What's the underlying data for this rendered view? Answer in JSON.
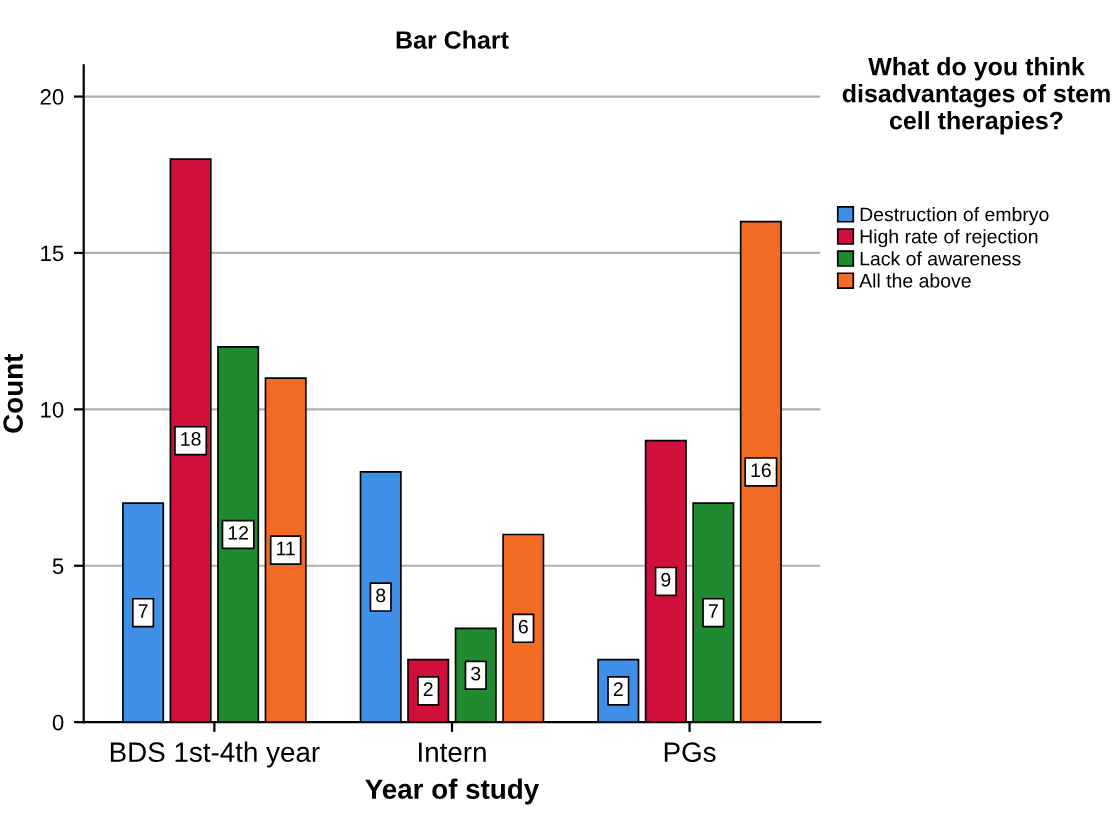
{
  "chart_data": {
    "type": "bar",
    "title": "Bar Chart",
    "xlabel": "Year of study",
    "ylabel": "Count",
    "legend_title": "What do you think disadvantages of stem cell therapies?",
    "categories": [
      "BDS 1st-4th year",
      "Intern",
      "PGs"
    ],
    "series": [
      {
        "name": "Destruction of embryo",
        "color": "#3f8fe6",
        "values": [
          7,
          8,
          2
        ]
      },
      {
        "name": "High rate of rejection",
        "color": "#d10f3c",
        "values": [
          18,
          2,
          9
        ]
      },
      {
        "name": "Lack of awareness",
        "color": "#1f8a30",
        "values": [
          12,
          3,
          7
        ]
      },
      {
        "name": "All the above",
        "color": "#f26b25",
        "values": [
          11,
          6,
          16
        ]
      }
    ],
    "ylim": [
      0,
      21
    ],
    "yticks": [
      0,
      5,
      10,
      15,
      20
    ],
    "grid": "y",
    "legend": "right",
    "data_labels": true
  }
}
